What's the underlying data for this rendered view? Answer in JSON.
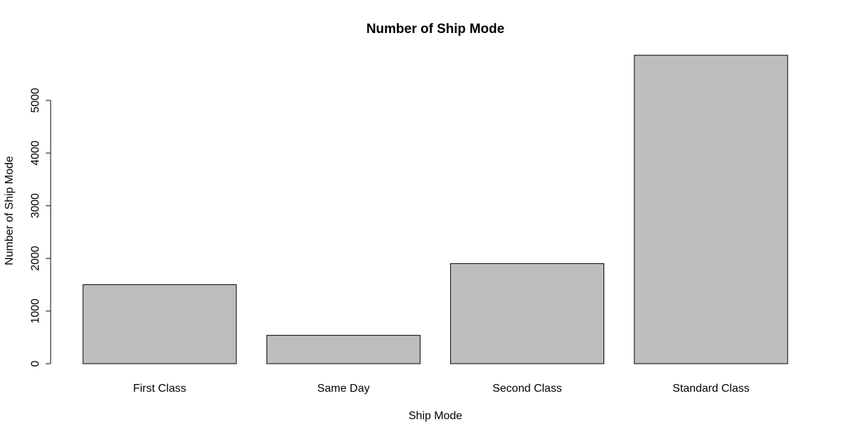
{
  "chart_data": {
    "type": "bar",
    "title": "Number of Ship Mode",
    "xlabel": "Ship Mode",
    "ylabel": "Number of Ship Mode",
    "categories": [
      "First Class",
      "Same Day",
      "Second Class",
      "Standard Class"
    ],
    "values": [
      1501,
      538,
      1902,
      5858
    ],
    "yticks": [
      0,
      1000,
      2000,
      3000,
      4000,
      5000
    ],
    "ytick_labels": [
      "0",
      "1000",
      "2000",
      "3000",
      "4000",
      "5000"
    ],
    "ylim": [
      0,
      5858
    ],
    "grid": false,
    "legend": "none",
    "bar_color": "#bebebe",
    "edge_color": "#000000"
  }
}
